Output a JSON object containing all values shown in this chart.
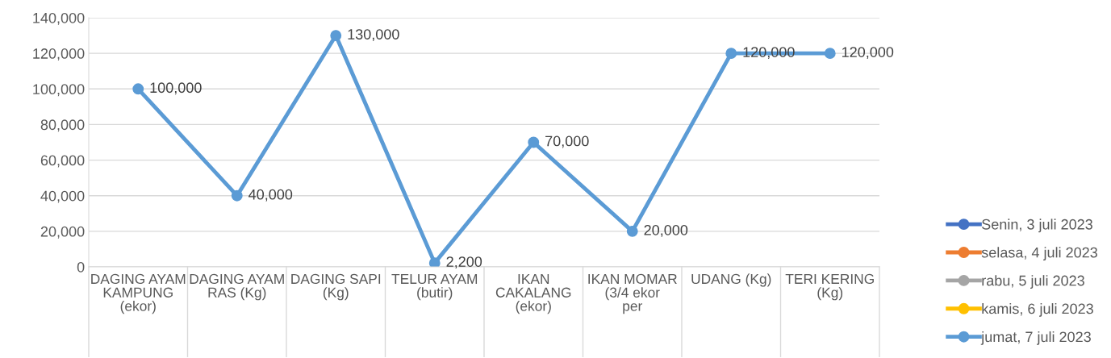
{
  "chart_data": {
    "type": "line",
    "categories": [
      "DAGING AYAM KAMPUNG (ekor)",
      "DAGING AYAM RAS (Kg)",
      "DAGING SAPI (Kg)",
      "TELUR AYAM (butir)",
      "IKAN CAKALANG (ekor)",
      "IKAN MOMAR (3/4 ekor per",
      "UDANG (Kg)",
      "TERI KERING (Kg)"
    ],
    "series": [
      {
        "name": "Senin, 3 juli 2023",
        "color": "#4472c4",
        "values": [
          null,
          null,
          null,
          null,
          null,
          null,
          null,
          null
        ]
      },
      {
        "name": "selasa, 4 juli 2023",
        "color": "#ed7d31",
        "values": [
          null,
          null,
          null,
          null,
          null,
          null,
          null,
          null
        ]
      },
      {
        "name": "rabu, 5 juli 2023",
        "color": "#a5a5a5",
        "values": [
          null,
          null,
          null,
          null,
          null,
          null,
          null,
          null
        ]
      },
      {
        "name": "kamis, 6 juli 2023",
        "color": "#ffc000",
        "values": [
          null,
          null,
          null,
          null,
          null,
          null,
          null,
          null
        ]
      },
      {
        "name": "jumat, 7 juli 2023",
        "color": "#5b9bd5",
        "values": [
          100000,
          40000,
          130000,
          2200,
          70000,
          20000,
          120000,
          120000
        ],
        "value_labels": [
          "100,000",
          "40,000",
          "130,000",
          "2,200",
          "70,000",
          "20,000",
          "120,000",
          "120,000"
        ]
      }
    ],
    "ylim": [
      0,
      140000
    ],
    "yticks": [
      {
        "value": 0,
        "label": "0"
      },
      {
        "value": 20000,
        "label": "20,000"
      },
      {
        "value": 40000,
        "label": "40,000"
      },
      {
        "value": 60000,
        "label": "60,000"
      },
      {
        "value": 80000,
        "label": "80,000"
      },
      {
        "value": 100000,
        "label": "100,000"
      },
      {
        "value": 120000,
        "label": "120,000"
      },
      {
        "value": 140000,
        "label": "140,000"
      }
    ],
    "grid": "y",
    "legend": "bottom right",
    "marker": "circle",
    "line_style": "solid"
  }
}
